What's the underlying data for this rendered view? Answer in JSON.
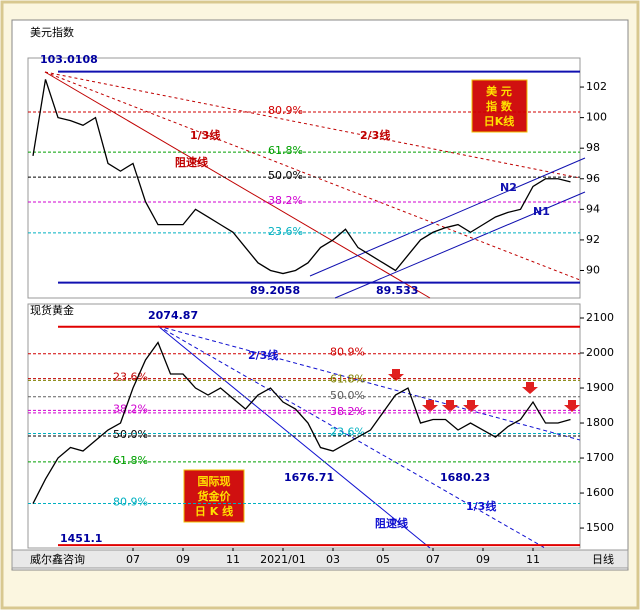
{
  "chart_data": [
    {
      "type": "line",
      "title": "美元指数",
      "color": "#000000",
      "values": [
        97.5,
        102.5,
        100,
        99.8,
        99.5,
        100,
        97,
        96.5,
        97,
        94.5,
        93,
        93,
        93,
        94,
        93.5,
        93,
        92.5,
        91.5,
        90.5,
        90,
        89.8,
        90,
        90.5,
        91.5,
        92,
        92.7,
        91.5,
        91,
        90.5,
        90,
        91,
        92,
        92.5,
        92.8,
        93,
        92.5,
        93,
        93.5,
        93.8,
        94,
        95.5,
        96,
        96,
        95.8
      ],
      "ylim": [
        88.2,
        103.9
      ],
      "yticks": [
        90,
        92,
        94,
        96,
        98,
        100,
        102
      ],
      "levels": [
        {
          "label": "80.9%",
          "value": 100.37,
          "color": "#d00000"
        },
        {
          "label": "61.8%",
          "value": 97.74,
          "color": "#00a000"
        },
        {
          "label": "50.0%",
          "value": 96.11,
          "color": "#000000"
        },
        {
          "label": "38.2%",
          "value": 94.48,
          "color": "#d000d0"
        },
        {
          "label": "23.6%",
          "value": 92.46,
          "color": "#00b0c0"
        }
      ],
      "price_lines": [
        103.0108,
        89.2058
      ],
      "price_line_color": "#1010b0",
      "marked_lows": [
        89.533
      ],
      "annotations": [
        "1/3线",
        "2/3线",
        "阻速线",
        "N2",
        "N1"
      ],
      "badge": [
        "美 元",
        "指 数",
        "日K线"
      ]
    },
    {
      "type": "line",
      "title": "现货黄金",
      "color": "#000000",
      "categories": [
        null,
        null,
        null,
        null,
        null,
        null,
        null,
        null,
        "07",
        null,
        null,
        null,
        "09",
        null,
        null,
        null,
        "11",
        null,
        null,
        null,
        "2021/01",
        null,
        null,
        null,
        "03",
        null,
        null,
        null,
        "05",
        null,
        null,
        null,
        "07",
        null,
        null,
        null,
        "09",
        null,
        null,
        null,
        "11",
        null,
        null,
        null
      ],
      "values": [
        1570,
        1640,
        1700,
        1730,
        1720,
        1750,
        1780,
        1800,
        1900,
        1980,
        2030,
        1940,
        1940,
        1900,
        1880,
        1900,
        1870,
        1840,
        1880,
        1900,
        1860,
        1840,
        1800,
        1730,
        1720,
        1740,
        1760,
        1780,
        1830,
        1880,
        1900,
        1800,
        1810,
        1810,
        1780,
        1800,
        1780,
        1760,
        1790,
        1810,
        1860,
        1800,
        1800,
        1810
      ],
      "ylim": [
        1443,
        2140
      ],
      "yticks": [
        1500,
        1600,
        1700,
        1800,
        1900,
        2000,
        2100
      ],
      "levels": [
        {
          "label": "23.6%",
          "value": 1927,
          "color": "#c00000"
        },
        {
          "label": "38.2%",
          "value": 1836,
          "color": "#d000d0"
        },
        {
          "label": "50.0%",
          "value": 1763,
          "color": "#000000"
        },
        {
          "label": "61.8%",
          "value": 1689,
          "color": "#00a000"
        },
        {
          "label": "80.9%",
          "value": 1570,
          "color": "#00b0c0"
        }
      ],
      "levels2": [
        {
          "label": "80.9%",
          "value": 1998,
          "color": "#d00000"
        },
        {
          "label": "61.8%",
          "value": 1922,
          "color": "#808000"
        },
        {
          "label": "50.0%",
          "value": 1875,
          "color": "#606060"
        },
        {
          "label": "38.2%",
          "value": 1829,
          "color": "#d000d0"
        },
        {
          "label": "23.6%",
          "value": 1770,
          "color": "#00b0c0"
        }
      ],
      "price_lines": [
        2074.87,
        1451.1
      ],
      "price_line_color": "#e00000",
      "marked_lows": [
        1676.71,
        1680.23
      ],
      "annotations": [
        "2/3线",
        "1/3线",
        "阻速线"
      ],
      "badge": [
        "国际现",
        "货金价",
        "日 K 线"
      ]
    }
  ],
  "footer": {
    "source": "威尔鑫咨询",
    "period": "日线"
  }
}
